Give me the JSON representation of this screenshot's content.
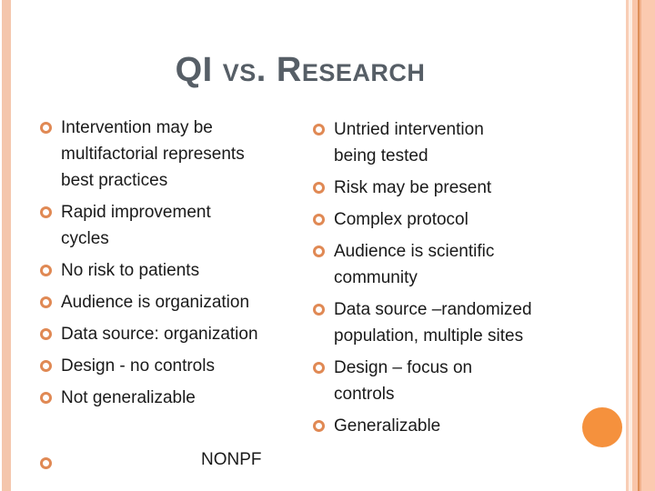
{
  "slide": {
    "title": "QI vs. Research",
    "left_column": {
      "items": [
        "Intervention may be\nmultifactorial represents\nbest practices",
        "Rapid improvement\ncycles",
        "No risk to patients",
        "Audience is organization",
        "Data source: organization",
        "Design - no controls",
        "Not generalizable"
      ]
    },
    "right_column": {
      "items": [
        "Untried intervention\nbeing tested",
        "Risk may be present",
        "Complex protocol",
        "Audience is scientific\ncommunity",
        "Data source –randomized\npopulation, multiple sites",
        "Design – focus on\ncontrols",
        "Generalizable"
      ]
    },
    "footer": {
      "text": "NONPF"
    },
    "colors": {
      "title": "#565e66",
      "body_text": "#1a1a1a",
      "bullet_ring": "#e08954",
      "stripe_light": "#f4c6ac",
      "stripe_accent": "#dd8e58",
      "circle": "#f5913d"
    }
  }
}
